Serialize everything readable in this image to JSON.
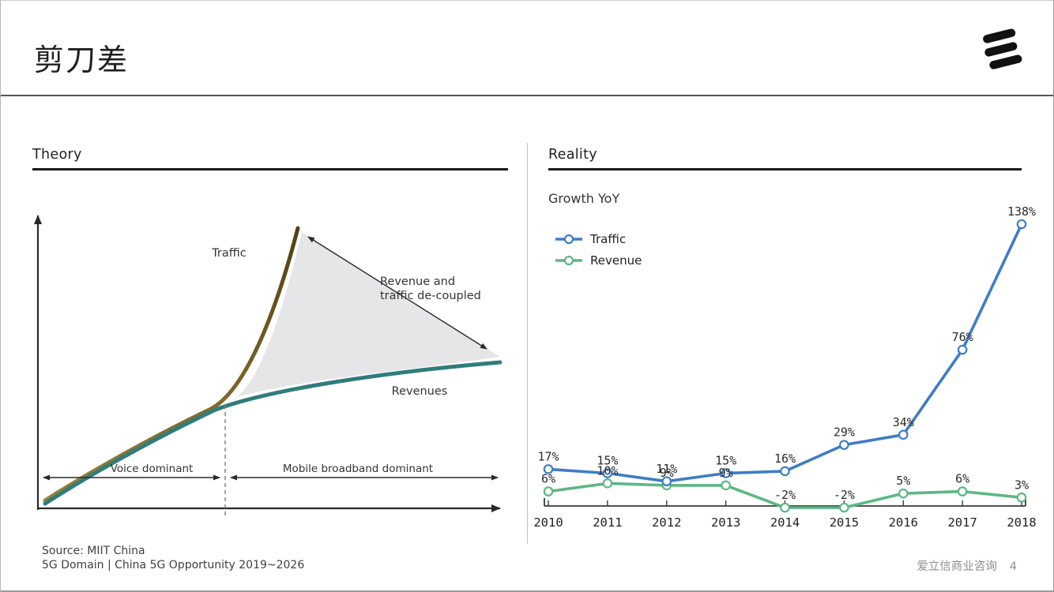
{
  "header": {
    "title": "剪刀差"
  },
  "theory": {
    "heading": "Theory",
    "labels": {
      "traffic": "Traffic",
      "revenues": "Revenues",
      "decoupled_line1": "Revenue and",
      "decoupled_line2": "traffic de-coupled",
      "voice": "Voice dominant",
      "mbb": "Mobile broadband dominant"
    },
    "colors": {
      "traffic_curve": "#75551c",
      "revenue_curve": "#2f7d7c",
      "gap_fill": "#e6e6e8"
    }
  },
  "reality": {
    "heading": "Reality",
    "subtitle": "Growth YoY",
    "legend": [
      {
        "label": "Traffic",
        "color": "#3e7dc7"
      },
      {
        "label": "Revenue",
        "color": "#5bb884"
      }
    ]
  },
  "chart_data": {
    "type": "line",
    "title": "Growth YoY",
    "x": [
      "2010",
      "2011",
      "2012",
      "2013",
      "2014",
      "2015",
      "2016",
      "2017",
      "2018"
    ],
    "series": [
      {
        "name": "Traffic",
        "color": "#3e7dc7",
        "values": [
          17,
          15,
          11,
          15,
          16,
          29,
          34,
          76,
          138
        ],
        "labels": [
          "17%",
          "15%",
          "11%",
          "15%",
          "16%",
          "29%",
          "34%",
          "76%",
          "138%"
        ]
      },
      {
        "name": "Revenue",
        "color": "#5bb884",
        "values": [
          6,
          10,
          9,
          9,
          -2,
          -2,
          5,
          6,
          3
        ],
        "labels": [
          "6%",
          "10%",
          "9%",
          "9%",
          "-2%",
          "-2%",
          "5%",
          "6%",
          "3%"
        ]
      }
    ],
    "ylabel": "Growth YoY (%)",
    "xlabel": "",
    "ylim": [
      -10,
      150
    ],
    "grid": false,
    "legend_position": "top-left",
    "label_format": "percent",
    "marker": "open-circle"
  },
  "footer": {
    "source_line1": "Source: MIIT China",
    "source_line2": "5G Domain | China 5G Opportunity 2019~2026",
    "right_text": "爱立信商业咨询",
    "page_number": "4"
  }
}
